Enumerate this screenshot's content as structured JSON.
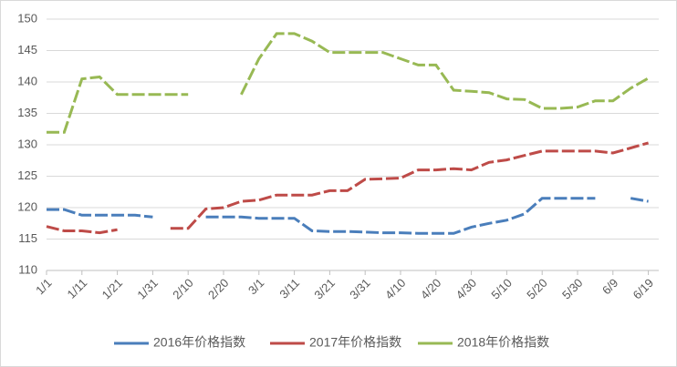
{
  "chart_data": {
    "type": "line",
    "categories": [
      "1/1",
      null,
      "1/11",
      null,
      "1/21",
      null,
      "1/31",
      null,
      "2/10",
      null,
      "2/20",
      null,
      "3/1",
      null,
      "3/11",
      null,
      "3/21",
      null,
      "3/31",
      null,
      "4/10",
      null,
      "4/20",
      null,
      "4/30",
      null,
      "5/10",
      null,
      "5/20",
      null,
      "5/30",
      null,
      "6/9",
      null,
      "6/19"
    ],
    "series": [
      {
        "name": "2016年价格指数",
        "color": "#4a7ebb",
        "values": [
          119.7,
          119.7,
          118.8,
          118.8,
          118.8,
          118.8,
          118.5,
          null,
          null,
          118.5,
          118.5,
          118.5,
          118.3,
          118.3,
          118.3,
          116.3,
          116.2,
          116.2,
          116.1,
          116,
          116,
          115.9,
          115.9,
          115.9,
          116.9,
          117.5,
          118,
          119,
          121.5,
          121.5,
          121.5,
          121.5,
          null,
          121.5,
          121
        ]
      },
      {
        "name": "2017年价格指数",
        "color": "#be4b48",
        "values": [
          117,
          116.3,
          116.3,
          116,
          116.5,
          null,
          null,
          116.7,
          116.7,
          119.8,
          120,
          121,
          121.2,
          122,
          122,
          122,
          122.7,
          122.7,
          124.5,
          124.6,
          124.7,
          126,
          126,
          126.2,
          126,
          127.2,
          127.6,
          128.3,
          129,
          129,
          129,
          129,
          128.7,
          129.5,
          130.3
        ]
      },
      {
        "name": "2018年价格指数",
        "color": "#98b954",
        "values": [
          132,
          132,
          140.5,
          140.8,
          138,
          138,
          138,
          138,
          138,
          null,
          null,
          138,
          143.7,
          147.7,
          147.7,
          146.5,
          144.7,
          144.7,
          144.7,
          144.7,
          143.7,
          142.7,
          142.7,
          138.7,
          138.5,
          138.3,
          137.3,
          137.2,
          135.8,
          135.8,
          136,
          137,
          137,
          139,
          140.6
        ]
      }
    ],
    "ylim": [
      110,
      150
    ],
    "yticks": [
      110,
      115,
      120,
      125,
      130,
      135,
      140,
      145,
      150
    ],
    "grid": true,
    "legend": "bottom"
  }
}
